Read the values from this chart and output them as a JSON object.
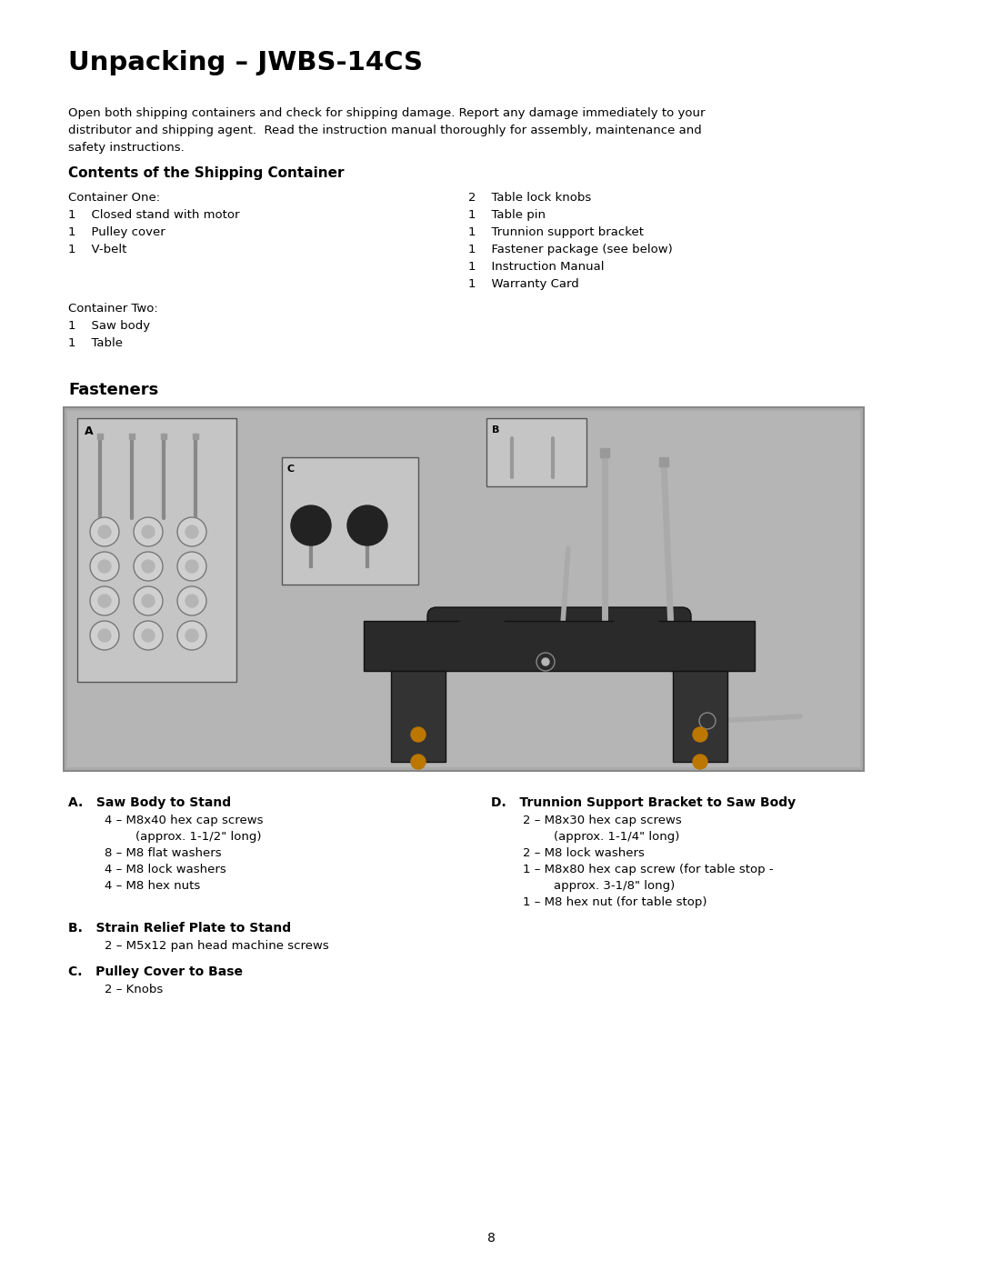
{
  "title": "Unpacking – JWBS-14CS",
  "intro_lines": [
    "Open both shipping containers and check for shipping damage. Report any damage immediately to your",
    "distributor and shipping agent.  Read the instruction manual thoroughly for assembly, maintenance and",
    "safety instructions."
  ],
  "section1_title": "Contents of the Shipping Container",
  "col1_header": "Container One:",
  "col1_items": [
    "1    Closed stand with motor",
    "1    Pulley cover",
    "1    V-belt"
  ],
  "col2_first": "2    Table lock knobs",
  "col2_items": [
    "1    Table pin",
    "1    Trunnion support bracket",
    "1    Fastener package (see below)",
    "1    Instruction Manual",
    "1    Warranty Card"
  ],
  "col2_header2": "Container Two:",
  "col1_items2": [
    "1    Saw body",
    "1    Table"
  ],
  "section2_title": "Fasteners",
  "fastener_A_title": "A.   Saw Body to Stand",
  "fastener_A_items": [
    "4 – M8x40 hex cap screws",
    "        (approx. 1-1/2\" long)",
    "8 – M8 flat washers",
    "4 – M8 lock washers",
    "4 – M8 hex nuts"
  ],
  "fastener_B_title": "B.   Strain Relief Plate to Stand",
  "fastener_B_items": [
    "2 – M5x12 pan head machine screws"
  ],
  "fastener_C_title": "C.   Pulley Cover to Base",
  "fastener_C_items": [
    "2 – Knobs"
  ],
  "fastener_D_title": "D.   Trunnion Support Bracket to Saw Body",
  "fastener_D_items": [
    "2 – M8x30 hex cap screws",
    "        (approx. 1-1/4\" long)",
    "2 – M8 lock washers",
    "1 – M8x80 hex cap screw (for table stop -",
    "        approx. 3-1/8\" long)",
    "1 – M8 hex nut (for table stop)"
  ],
  "page_number": "8",
  "bg_color": "#ffffff",
  "text_color": "#000000",
  "img_bg": "#b0b0b0",
  "img_inner": "#b8b8b8",
  "box_fill": "#c8c8c8",
  "box_edge": "#666666"
}
